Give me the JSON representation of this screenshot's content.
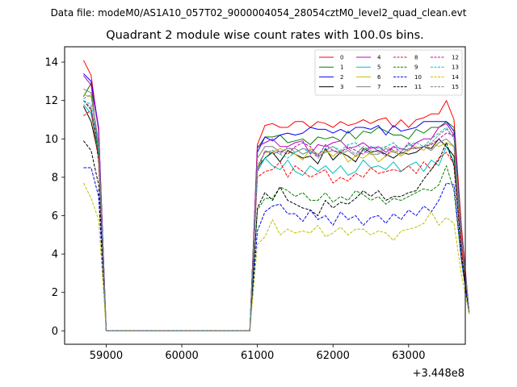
{
  "suptitle": "Data file: modeM0/AS1A10_057T02_9000004054_28054cztM0_level2_quad_clean.evt",
  "chart_data": {
    "type": "line",
    "title": "Quadrant 2 module wise count rates with 100.0s bins.",
    "xlabel": "",
    "ylabel": "",
    "x_offset_label": "+3.448e8",
    "xlim": [
      58450,
      63750
    ],
    "ylim": [
      -0.7,
      14.8
    ],
    "x_ticks": [
      59000,
      60000,
      61000,
      62000,
      63000
    ],
    "x_tick_labels": [
      "59000",
      "60000",
      "61000",
      "62000",
      "63000"
    ],
    "y_ticks": [
      0,
      2,
      4,
      6,
      8,
      10,
      12,
      14
    ],
    "y_tick_labels": [
      "0",
      "2",
      "4",
      "6",
      "8",
      "10",
      "12",
      "14"
    ],
    "grid": false,
    "legend_position": "top-right",
    "gap_start": 59000,
    "gap_end": 60900,
    "x_first": 58700,
    "x_good_start": 61000,
    "x_step": 100,
    "series": [
      {
        "name": "0",
        "color": "#ff0000",
        "dash": "solid",
        "pre": [
          14.1,
          13.3,
          10.4,
          0.0
        ],
        "post": [
          9.7,
          10.7,
          10.8,
          10.6,
          10.6,
          10.9,
          10.9,
          10.6,
          10.9,
          10.8,
          10.6,
          10.9,
          10.7,
          10.8,
          11.0,
          10.8,
          11.0,
          11.1,
          10.6,
          11.0,
          10.6,
          11.0,
          11.1,
          11.3,
          11.3,
          12.0,
          11.0,
          5.4,
          1.0
        ]
      },
      {
        "name": "1",
        "color": "#008000",
        "dash": "solid",
        "pre": [
          12.2,
          12.9,
          9.0,
          0.0
        ],
        "post": [
          9.5,
          10.1,
          10.1,
          10.2,
          9.8,
          9.9,
          10.0,
          9.7,
          10.1,
          10.0,
          10.1,
          9.9,
          10.4,
          10.0,
          10.4,
          10.3,
          10.6,
          10.4,
          10.2,
          10.2,
          10.0,
          10.5,
          10.3,
          10.6,
          10.6,
          10.9,
          10.6,
          5.0,
          1.0
        ]
      },
      {
        "name": "2",
        "color": "#0000ff",
        "dash": "solid",
        "pre": [
          13.4,
          13.0,
          10.6,
          0.0
        ],
        "post": [
          9.3,
          10.1,
          9.9,
          10.2,
          10.3,
          10.2,
          10.3,
          10.6,
          10.5,
          10.5,
          10.3,
          10.5,
          10.3,
          10.6,
          10.6,
          10.5,
          10.7,
          10.2,
          10.7,
          10.4,
          10.5,
          10.6,
          10.9,
          10.9,
          10.9,
          10.9,
          10.4,
          5.0,
          1.0
        ]
      },
      {
        "name": "3",
        "color": "#000000",
        "dash": "solid",
        "pre": [
          11.7,
          10.9,
          9.1,
          0.0
        ],
        "post": [
          8.5,
          9.0,
          9.3,
          8.8,
          9.4,
          9.2,
          9.0,
          9.1,
          8.7,
          9.5,
          8.9,
          9.3,
          9.1,
          8.8,
          9.5,
          9.3,
          9.4,
          9.2,
          9.0,
          9.3,
          9.2,
          9.3,
          9.6,
          9.5,
          10.0,
          9.6,
          9.1,
          4.5,
          0.9
        ]
      },
      {
        "name": "4",
        "color": "#bf00bf",
        "dash": "solid",
        "pre": [
          13.3,
          12.8,
          10.5,
          0.0
        ],
        "post": [
          9.6,
          9.8,
          10.0,
          9.6,
          9.6,
          9.8,
          9.9,
          9.2,
          9.7,
          9.6,
          9.8,
          9.9,
          9.5,
          9.6,
          9.8,
          9.5,
          9.6,
          9.3,
          9.6,
          9.5,
          9.4,
          9.8,
          10.0,
          10.0,
          10.6,
          10.8,
          10.2,
          4.8,
          1.0
        ]
      },
      {
        "name": "5",
        "color": "#00bfbf",
        "dash": "solid",
        "pre": [
          11.8,
          11.3,
          9.3,
          0.0
        ],
        "post": [
          8.3,
          9.0,
          8.6,
          8.4,
          8.9,
          8.3,
          8.1,
          8.6,
          8.3,
          8.6,
          8.2,
          8.6,
          8.1,
          8.3,
          8.9,
          8.5,
          8.6,
          8.4,
          8.8,
          8.3,
          8.6,
          8.8,
          8.3,
          8.9,
          8.6,
          9.6,
          8.8,
          4.6,
          0.9
        ]
      },
      {
        "name": "6",
        "color": "#bfbf00",
        "dash": "solid",
        "pre": [
          12.3,
          12.2,
          9.8,
          0.0
        ],
        "post": [
          8.5,
          9.3,
          9.3,
          9.5,
          9.3,
          9.2,
          8.9,
          9.5,
          9.2,
          9.4,
          9.1,
          9.4,
          8.8,
          9.1,
          9.0,
          9.3,
          8.8,
          9.1,
          9.4,
          9.1,
          9.4,
          9.6,
          9.4,
          9.8,
          9.6,
          9.8,
          9.6,
          4.6,
          1.0
        ]
      },
      {
        "name": "7",
        "color": "#808080",
        "dash": "solid",
        "pre": [
          12.6,
          12.4,
          9.7,
          0.0
        ],
        "post": [
          9.0,
          9.6,
          9.6,
          9.3,
          9.5,
          9.5,
          9.2,
          9.4,
          9.1,
          9.3,
          9.4,
          9.2,
          9.4,
          9.1,
          9.4,
          9.2,
          9.2,
          9.5,
          9.3,
          9.2,
          9.5,
          9.5,
          9.6,
          9.4,
          9.8,
          10.0,
          9.6,
          4.7,
          1.0
        ]
      },
      {
        "name": "8",
        "color": "#ff0000",
        "dash": "dashed",
        "pre": [
          11.2,
          11.5,
          8.8,
          0.0
        ],
        "post": [
          8.0,
          8.3,
          8.4,
          8.8,
          8.0,
          8.6,
          8.3,
          8.0,
          8.2,
          8.4,
          7.7,
          8.0,
          7.8,
          8.2,
          8.0,
          8.5,
          8.2,
          8.3,
          8.4,
          8.3,
          8.6,
          8.2,
          8.8,
          8.4,
          9.0,
          9.3,
          8.7,
          4.4,
          0.9
        ]
      },
      {
        "name": "9",
        "color": "#008000",
        "dash": "dashed",
        "pre": [
          12.0,
          11.5,
          9.1,
          0.0
        ],
        "post": [
          6.3,
          6.9,
          6.9,
          7.5,
          7.3,
          7.0,
          7.2,
          6.8,
          6.8,
          7.2,
          6.7,
          7.0,
          6.8,
          7.3,
          7.1,
          6.8,
          7.0,
          6.6,
          6.9,
          6.8,
          7.0,
          7.2,
          7.4,
          7.3,
          7.6,
          8.6,
          7.3,
          3.6,
          0.9
        ]
      },
      {
        "name": "10",
        "color": "#0000ff",
        "dash": "dashed",
        "pre": [
          8.5,
          8.5,
          7.0,
          0.0
        ],
        "post": [
          5.2,
          6.2,
          6.5,
          6.6,
          6.1,
          6.1,
          5.7,
          6.3,
          5.8,
          6.0,
          5.5,
          6.2,
          5.8,
          6.0,
          5.5,
          5.9,
          6.0,
          5.6,
          6.1,
          5.8,
          6.3,
          6.0,
          6.5,
          6.2,
          6.8,
          7.7,
          7.6,
          3.7,
          1.0
        ]
      },
      {
        "name": "11",
        "color": "#000000",
        "dash": "dashed",
        "pre": [
          9.9,
          9.4,
          7.6,
          0.0
        ],
        "post": [
          6.4,
          7.2,
          6.8,
          7.5,
          6.8,
          6.6,
          6.4,
          6.3,
          6.0,
          6.8,
          6.4,
          6.7,
          6.6,
          6.9,
          7.3,
          7.0,
          7.3,
          6.8,
          7.0,
          7.0,
          7.2,
          7.3,
          7.9,
          8.4,
          8.9,
          9.8,
          8.6,
          4.0,
          0.9
        ]
      },
      {
        "name": "12",
        "color": "#bf00bf",
        "dash": "dashed",
        "pre": [
          12.0,
          11.6,
          9.5,
          0.0
        ],
        "post": [
          8.3,
          9.4,
          9.2,
          9.4,
          9.2,
          9.6,
          9.8,
          9.6,
          9.1,
          9.7,
          9.4,
          9.3,
          9.6,
          9.4,
          9.2,
          9.6,
          9.4,
          9.1,
          9.6,
          9.3,
          9.8,
          9.5,
          9.6,
          9.7,
          10.0,
          10.3,
          10.2,
          4.8,
          1.0
        ]
      },
      {
        "name": "13",
        "color": "#00bfbf",
        "dash": "dashed",
        "pre": [
          12.0,
          11.8,
          9.6,
          0.0
        ],
        "post": [
          8.4,
          9.0,
          9.4,
          9.2,
          9.0,
          9.3,
          9.5,
          9.3,
          9.2,
          9.5,
          9.6,
          9.4,
          9.7,
          9.8,
          9.4,
          9.6,
          9.5,
          9.6,
          9.8,
          9.4,
          9.7,
          9.8,
          9.6,
          10.0,
          10.3,
          10.6,
          10.0,
          4.9,
          1.0
        ]
      },
      {
        "name": "14",
        "color": "#bfbf00",
        "dash": "dashed",
        "pre": [
          7.7,
          6.9,
          5.8,
          0.0
        ],
        "post": [
          4.5,
          4.9,
          5.8,
          5.0,
          5.3,
          5.1,
          5.2,
          5.1,
          5.5,
          4.9,
          5.1,
          5.4,
          5.0,
          5.3,
          5.3,
          5.0,
          5.2,
          5.1,
          4.7,
          5.2,
          5.3,
          5.4,
          5.6,
          6.2,
          5.5,
          5.9,
          5.6,
          2.9,
          0.9
        ]
      },
      {
        "name": "15",
        "color": "#808080",
        "dash": "dashed",
        "pre": [
          12.1,
          12.3,
          9.8,
          0.0
        ],
        "post": [
          8.6,
          9.3,
          9.4,
          9.2,
          9.6,
          9.3,
          9.5,
          9.4,
          9.0,
          9.4,
          9.6,
          9.3,
          9.5,
          9.2,
          9.6,
          9.4,
          9.3,
          9.6,
          9.4,
          9.3,
          9.7,
          9.5,
          9.6,
          9.8,
          10.2,
          10.5,
          10.1,
          4.9,
          1.0
        ]
      }
    ]
  }
}
